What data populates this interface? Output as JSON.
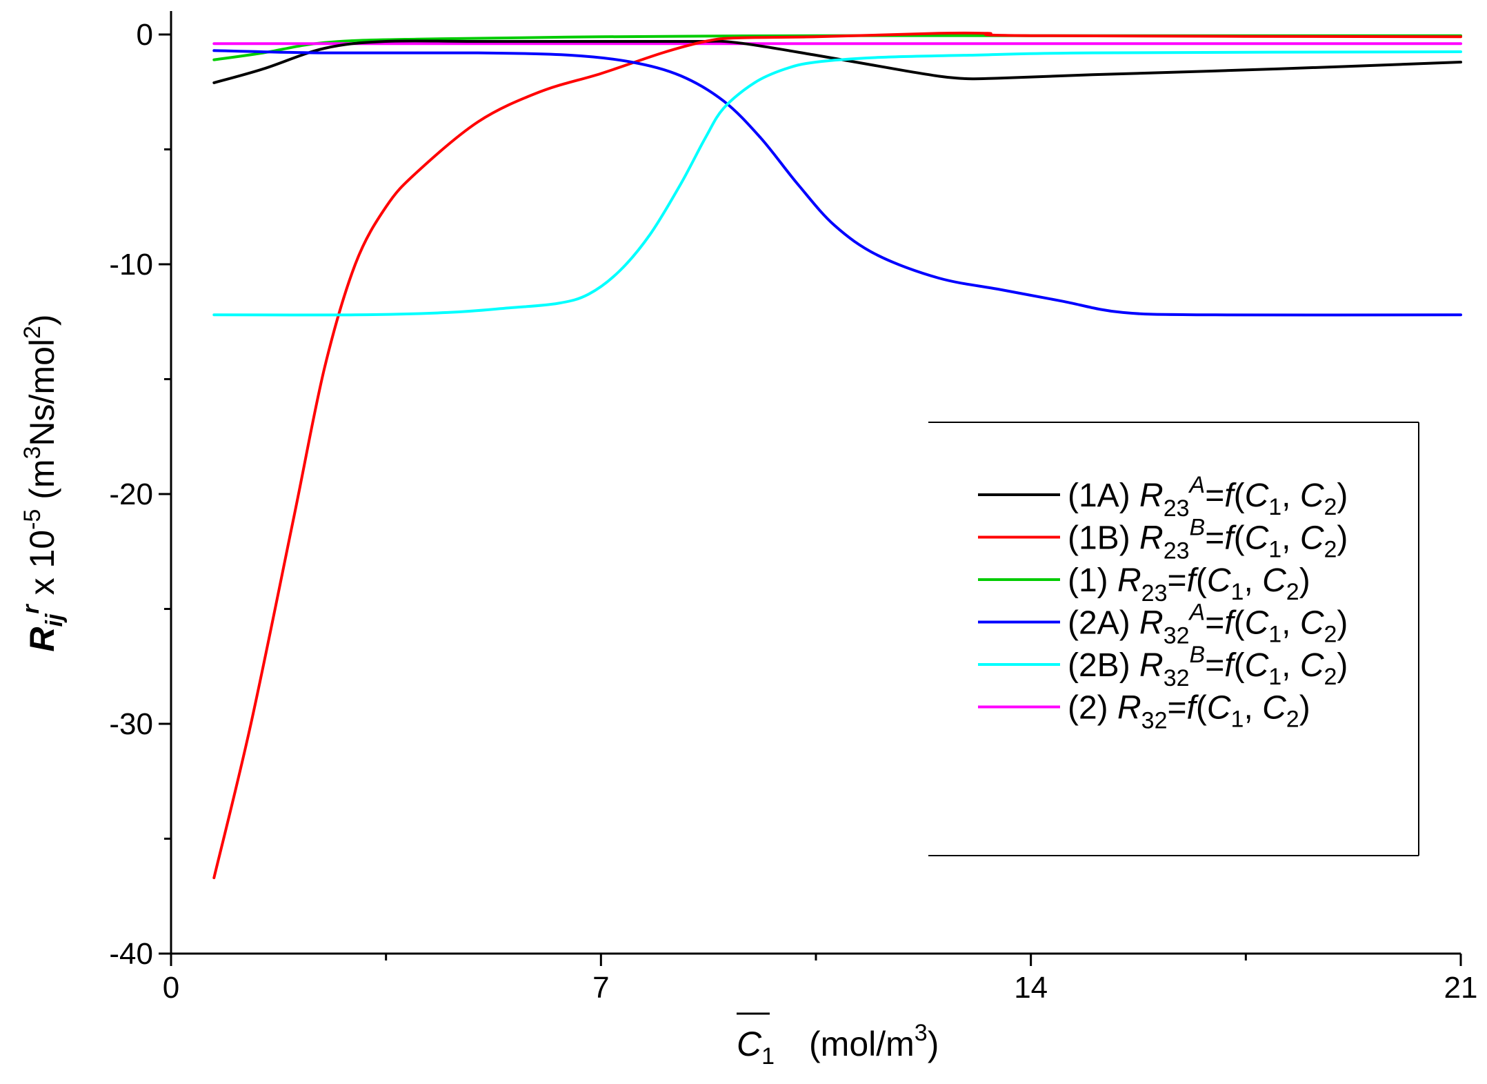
{
  "chart_data": {
    "type": "line",
    "title": "",
    "xlabel": {
      "symbol": "C",
      "subscript": "1",
      "units_prefix": "(mol/m",
      "units_power": "3",
      "units_suffix": ")"
    },
    "ylabel": {
      "symbol": "R",
      "subscript": "ij",
      "superscript": "r",
      "scale_text": " x 10",
      "scale_power": "-5",
      "units_prefix": " (m",
      "units_power": "3",
      "units_mid": "Ns/mol",
      "units_power2": "2",
      "units_suffix": ")"
    },
    "xlim": [
      0,
      21
    ],
    "ylim": [
      -40,
      1
    ],
    "x_ticks": [
      0,
      7,
      14,
      21
    ],
    "y_ticks": [
      0,
      -10,
      -20,
      -30,
      -40
    ],
    "x_minor_ticks": [
      3.5,
      10.5,
      17.5
    ],
    "y_minor_ticks": [
      -5,
      -15,
      -25,
      -35
    ],
    "legend_position": "center-right",
    "series": [
      {
        "id": "1A",
        "label_prefix": "(1A) ",
        "symbol": "R",
        "subscript": "23",
        "superscript": "A",
        "equation": "=f(C",
        "arg1_sub": "1",
        "arg_sep": ", C",
        "arg2_sub": "2",
        "close": ")",
        "color": "#000000",
        "points": [
          [
            0.7,
            -2.1
          ],
          [
            1.5,
            -1.5
          ],
          [
            2.5,
            -0.6
          ],
          [
            3.5,
            -0.3
          ],
          [
            5,
            -0.3
          ],
          [
            7,
            -0.3
          ],
          [
            8.5,
            -0.3
          ],
          [
            9.2,
            -0.35
          ],
          [
            10.5,
            -0.9
          ],
          [
            12,
            -1.6
          ],
          [
            12.8,
            -1.9
          ],
          [
            13.5,
            -1.9
          ],
          [
            15,
            -1.75
          ],
          [
            18,
            -1.5
          ],
          [
            21,
            -1.2
          ]
        ]
      },
      {
        "id": "1B",
        "label_prefix": "(1B) ",
        "symbol": "R",
        "subscript": "23",
        "superscript": "B",
        "equation": "=f(C",
        "arg1_sub": "1",
        "arg_sep": ", C",
        "arg2_sub": "2",
        "close": ")",
        "color": "#ff0000",
        "points": [
          [
            0.7,
            -36.7
          ],
          [
            1.3,
            -30
          ],
          [
            2,
            -21
          ],
          [
            2.5,
            -14.5
          ],
          [
            3,
            -10
          ],
          [
            3.5,
            -7.5
          ],
          [
            4,
            -6
          ],
          [
            5,
            -3.8
          ],
          [
            6,
            -2.5
          ],
          [
            7,
            -1.7
          ],
          [
            8,
            -0.8
          ],
          [
            8.7,
            -0.3
          ],
          [
            9.2,
            -0.15
          ],
          [
            10.5,
            -0.1
          ],
          [
            12.5,
            0.05
          ],
          [
            13.3,
            0.05
          ],
          [
            14,
            -0.05
          ],
          [
            21,
            -0.1
          ]
        ]
      },
      {
        "id": "1",
        "label_prefix": "(1)  ",
        "symbol": "R",
        "subscript": "23",
        "superscript": "",
        "equation": "=f(C",
        "arg1_sub": "1",
        "arg_sep": ", C",
        "arg2_sub": "2",
        "close": ")",
        "color": "#00cc00",
        "points": [
          [
            0.7,
            -1.1
          ],
          [
            1.5,
            -0.8
          ],
          [
            2.5,
            -0.35
          ],
          [
            4,
            -0.2
          ],
          [
            7,
            -0.1
          ],
          [
            10.5,
            -0.05
          ],
          [
            14,
            -0.05
          ],
          [
            21,
            -0.05
          ]
        ]
      },
      {
        "id": "2A",
        "label_prefix": "(2A) ",
        "symbol": "R",
        "subscript": "32",
        "superscript": "A",
        "equation": "=f(C",
        "arg1_sub": "1",
        "arg_sep": ", C",
        "arg2_sub": "2",
        "close": ")",
        "color": "#0000ff",
        "points": [
          [
            0.7,
            -0.7
          ],
          [
            2.5,
            -0.8
          ],
          [
            5,
            -0.8
          ],
          [
            6.5,
            -0.9
          ],
          [
            7.5,
            -1.2
          ],
          [
            8.3,
            -1.8
          ],
          [
            9,
            -2.9
          ],
          [
            9.6,
            -4.5
          ],
          [
            10.2,
            -6.5
          ],
          [
            10.8,
            -8.3
          ],
          [
            11.5,
            -9.6
          ],
          [
            12.5,
            -10.6
          ],
          [
            13.5,
            -11.1
          ],
          [
            14.5,
            -11.6
          ],
          [
            15.5,
            -12.1
          ],
          [
            17,
            -12.2
          ],
          [
            21,
            -12.2
          ]
        ]
      },
      {
        "id": "2B",
        "label_prefix": "(2B) ",
        "symbol": "R",
        "subscript": "32",
        "superscript": "B",
        "equation": "=f(C",
        "arg1_sub": "1",
        "arg_sep": ", C",
        "arg2_sub": "2",
        "close": ")",
        "color": "#00ffff",
        "points": [
          [
            0.7,
            -12.2
          ],
          [
            3,
            -12.2
          ],
          [
            4.5,
            -12.1
          ],
          [
            5.5,
            -11.9
          ],
          [
            6.3,
            -11.7
          ],
          [
            6.8,
            -11.3
          ],
          [
            7.3,
            -10.3
          ],
          [
            7.8,
            -8.7
          ],
          [
            8.3,
            -6.5
          ],
          [
            8.7,
            -4.5
          ],
          [
            9,
            -3.2
          ],
          [
            9.5,
            -2.1
          ],
          [
            10,
            -1.5
          ],
          [
            10.5,
            -1.2
          ],
          [
            11.5,
            -1.0
          ],
          [
            13,
            -0.9
          ],
          [
            15,
            -0.8
          ],
          [
            21,
            -0.75
          ]
        ]
      },
      {
        "id": "2",
        "label_prefix": "(2)  ",
        "symbol": "R",
        "subscript": "32",
        "superscript": "",
        "equation": "=f(C",
        "arg1_sub": "1",
        "arg_sep": ", C",
        "arg2_sub": "2",
        "close": ")",
        "color": "#ff00ff",
        "points": [
          [
            0.7,
            -0.4
          ],
          [
            4,
            -0.4
          ],
          [
            7,
            -0.4
          ],
          [
            10,
            -0.4
          ],
          [
            14,
            -0.4
          ],
          [
            21,
            -0.4
          ]
        ]
      }
    ]
  }
}
